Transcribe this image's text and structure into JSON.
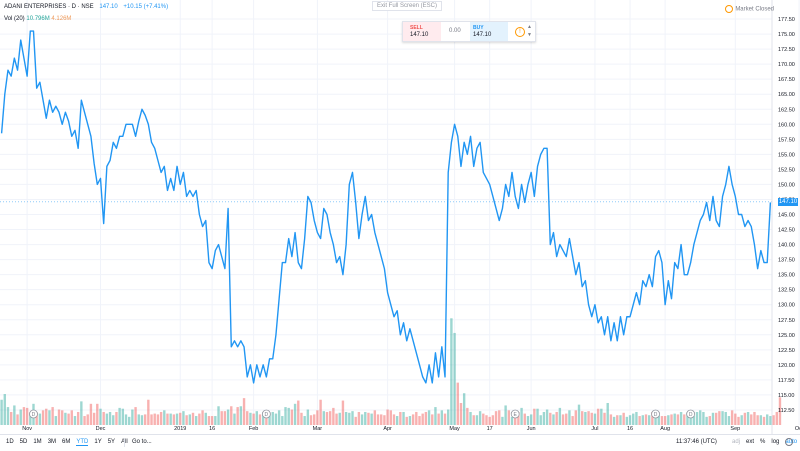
{
  "header": {
    "symbol": "ADANI ENTERPRISES · D · NSE",
    "last": "147.10",
    "change": "+10.15 (+7.41%)",
    "volume_label": "Vol (20)",
    "volume_value": "10.796M",
    "volume_ma": "4.126M"
  },
  "exit_fullscreen": "Exit Full Screen (ESC)",
  "market_status": "Market Closed",
  "trade": {
    "sell_label": "SELL",
    "sell_value": "147.10",
    "spread": "0.00",
    "buy_label": "BUY",
    "buy_value": "147.10"
  },
  "price_tag": "147.10",
  "bottom": {
    "ranges": [
      "1D",
      "5D",
      "1M",
      "3M",
      "6M",
      "YTD",
      "1Y",
      "5Y",
      "All"
    ],
    "active_range": "YTD",
    "goto": "Go to...",
    "clock": "11:37:46 (UTC)",
    "opts": [
      "adj",
      "ext",
      "%",
      "log",
      "auto"
    ]
  },
  "colors": {
    "line": "#2196f3",
    "vol_up": "#26a69a",
    "vol_down": "#ef5350",
    "accent": "#2196f3"
  },
  "chart_data": {
    "type": "line",
    "series": [
      {
        "values": [
          158.5,
          165,
          169,
          168,
          171,
          169,
          174,
          171,
          168,
          175.5,
          175.5,
          166,
          167,
          164,
          161,
          164,
          162,
          163,
          162,
          160,
          162,
          160.5,
          158,
          159,
          156,
          164,
          162,
          160,
          158,
          153.5,
          150,
          151,
          143.5,
          153,
          154,
          157,
          156,
          158,
          158,
          160,
          160,
          160,
          158,
          160.5,
          162.5,
          161.5,
          160,
          157,
          156,
          154,
          152,
          153,
          149,
          151,
          149,
          153,
          150,
          152,
          148,
          149,
          148,
          149,
          145,
          143,
          144,
          137,
          136,
          139,
          140,
          138,
          136,
          146,
          123,
          124,
          123,
          124,
          123,
          118,
          120,
          117,
          120,
          118,
          120,
          118,
          121,
          121,
          125,
          131,
          137,
          137,
          141,
          138,
          142,
          137,
          136,
          141,
          148,
          147,
          144,
          142,
          141,
          146,
          145,
          142,
          140,
          137,
          138,
          135,
          140,
          150,
          152,
          147,
          141,
          145,
          148,
          144,
          145,
          142,
          140,
          138,
          136,
          132,
          130,
          128,
          129,
          125,
          127,
          124,
          126,
          124,
          122,
          120,
          118,
          117,
          120,
          117,
          122,
          118,
          123,
          118,
          152,
          157,
          160,
          158,
          153,
          157,
          155,
          158,
          153,
          156,
          157,
          152,
          151,
          150,
          148,
          146,
          144,
          146,
          150,
          148,
          152,
          148,
          146,
          150,
          147,
          150,
          152,
          148,
          153,
          155,
          156,
          156,
          140,
          142,
          138,
          140,
          139,
          138,
          141,
          138,
          135,
          137,
          133,
          134,
          130,
          128,
          130,
          127,
          128,
          125,
          128,
          124,
          127,
          124,
          128,
          125,
          128,
          128,
          130,
          132,
          130,
          134,
          133,
          135,
          133,
          138,
          139,
          137,
          130,
          134,
          131,
          137,
          136,
          140,
          135,
          135,
          137,
          140,
          142,
          144,
          145,
          147,
          144,
          148,
          144,
          143,
          148,
          150,
          153,
          150,
          148,
          145,
          145,
          143,
          144,
          143,
          140,
          136,
          139,
          137,
          137,
          147
        ]
      }
    ],
    "volumes": [
      3.1,
      3.8,
      2.2,
      1.6,
      2.4,
      1.3,
      1.9,
      2.2,
      2.1,
      1.4,
      2.6,
      1.5,
      1.4,
      1.8,
      2.0,
      1.8,
      2.2,
      1.1,
      1.9,
      1.8,
      1.5,
      1.4,
      1.8,
      1.1,
      1.6,
      2.9,
      1.1,
      1.3,
      2.6,
      1.5,
      2.6,
      2.0,
      1.6,
      1.4,
      1.6,
      1.2,
      1.6,
      2.1,
      2.0,
      1.3,
      1.0,
      1.9,
      2.2,
      1.3,
      1.2,
      1.3,
      3.1,
      1.3,
      1.4,
      1.3,
      1.6,
      1.8,
      1.4,
      1.4,
      1.3,
      1.4,
      1.5,
      1.7,
      1.2,
      1.3,
      1.5,
      1.1,
      1.4,
      1.8,
      1.5,
      1.1,
      1.1,
      1.1,
      2.3,
      1.7,
      1.7,
      1.9,
      2.3,
      1.4,
      2.2,
      2.3,
      3.3,
      1.7,
      1.5,
      1.4,
      1.7,
      1.3,
      1.5,
      1.5,
      1.3,
      1.6,
      1.4,
      1.8,
      1.1,
      2.2,
      2.1,
      1.9,
      2.6,
      3.0,
      1.5,
      1.1,
      1.9,
      1.2,
      1.3,
      1.8,
      3.1,
      1.7,
      1.6,
      1.7,
      2.1,
      1.4,
      1.5,
      3.0,
      1.6,
      1.5,
      1.7,
      1.0,
      1.6,
      1.3,
      1.6,
      1.5,
      1.4,
      1.8,
      1.3,
      1.3,
      1.2,
      1.9,
      1.8,
      1.3,
      1.1,
      1.6,
      1.6,
      1.0,
      1.1,
      1.3,
      1.6,
      1.1,
      1.4,
      1.6,
      1.8,
      1.3,
      2.2,
      1.4,
      1.8,
      1.4,
      1.9,
      13.1,
      11.3,
      5.2,
      2.7,
      3.9,
      2.1,
      1.6,
      1.2,
      1.2,
      1.7,
      1.4,
      1.2,
      1.0,
      1.2,
      1.7,
      1.8,
      1.0,
      2.4,
      1.8,
      1.0,
      1.8,
      1.6,
      2.1,
      1.4,
      1.1,
      1.3,
      2.0,
      2.0,
      1.2,
      1.6,
      1.9,
      1.5,
      1.3,
      1.6,
      2.1,
      1.3,
      1.4,
      1.8,
      1.1,
      1.8,
      2.5,
      1.7,
      1.6,
      1.7,
      1.5,
      1.4,
      2.0,
      2.0,
      1.5,
      2.7,
      1.3,
      1.0,
      1.2,
      1.2,
      1.5,
      1.0,
      1.2,
      1.4,
      1.6,
      1.1,
      1.2,
      1.3,
      1.2,
      1.6,
      1.0,
      1.2,
      1.1,
      1.1,
      1.2,
      1.3,
      1.4,
      1.3,
      1.6,
      1.3,
      1.5,
      1.3,
      1.1,
      1.6,
      1.8,
      1.6,
      1.0,
      1.1,
      1.5,
      1.5,
      1.7,
      1.7,
      1.6,
      1.1,
      1.8,
      1.4,
      1.0,
      1.2,
      1.5,
      1.6,
      1.3,
      1.6,
      1.2,
      1.2,
      1.0,
      1.3,
      1.1,
      1.2,
      1.6,
      3.4
    ],
    "ylim": [
      110,
      180
    ],
    "y_ticks": [
      "112.50",
      "115.00",
      "117.50",
      "120.00",
      "122.50",
      "125.00",
      "127.50",
      "130.00",
      "132.50",
      "135.00",
      "137.50",
      "140.00",
      "142.50",
      "145.00",
      "147.50",
      "150.00",
      "152.50",
      "155.00",
      "157.50",
      "160.00",
      "162.50",
      "165.00",
      "167.50",
      "170.00",
      "172.50",
      "175.00",
      "177.50"
    ],
    "x_ticks": [
      {
        "label": "Nov",
        "i": 8
      },
      {
        "label": "Dec",
        "i": 31
      },
      {
        "label": "2019",
        "i": 56
      },
      {
        "label": "16",
        "i": 66
      },
      {
        "label": "Feb",
        "i": 79
      },
      {
        "label": "Mar",
        "i": 99
      },
      {
        "label": "Apr",
        "i": 121
      },
      {
        "label": "May",
        "i": 142
      },
      {
        "label": "17",
        "i": 153
      },
      {
        "label": "Jun",
        "i": 166
      },
      {
        "label": "Jul",
        "i": 186
      },
      {
        "label": "16",
        "i": 197
      },
      {
        "label": "Aug",
        "i": 208
      },
      {
        "label": "Sep",
        "i": 230
      },
      {
        "label": "Oct",
        "i": 250
      },
      {
        "label": "21",
        "i": 262
      }
    ],
    "markers": [
      {
        "label": "D",
        "i": 10
      },
      {
        "label": "D",
        "i": 83
      },
      {
        "label": "E",
        "i": 161
      },
      {
        "label": "D",
        "i": 205
      },
      {
        "label": "D",
        "i": 216
      }
    ],
    "grid": true,
    "price_line": 147.1
  }
}
